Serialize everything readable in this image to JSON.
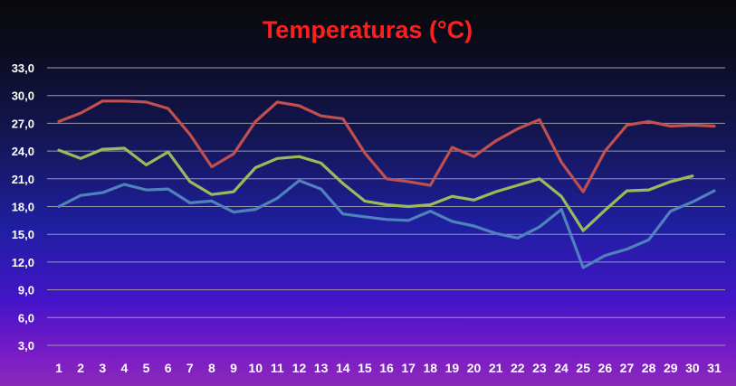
{
  "chart_data": {
    "type": "line",
    "title": "Temperaturas (°C)",
    "xlabel": "",
    "ylabel": "",
    "ylim": [
      3,
      33
    ],
    "yticks": [
      "3,0",
      "6,0",
      "9,0",
      "12,0",
      "15,0",
      "18,0",
      "21,0",
      "24,0",
      "27,0",
      "30,0",
      "33,0"
    ],
    "ytick_values": [
      3,
      6,
      9,
      12,
      15,
      18,
      21,
      24,
      27,
      30,
      33
    ],
    "categories": [
      "1",
      "2",
      "3",
      "4",
      "5",
      "6",
      "7",
      "8",
      "9",
      "10",
      "11",
      "12",
      "13",
      "14",
      "15",
      "16",
      "17",
      "18",
      "19",
      "20",
      "21",
      "22",
      "23",
      "24",
      "25",
      "26",
      "27",
      "28",
      "29",
      "30",
      "31"
    ],
    "grid": true,
    "legend": "none",
    "series": [
      {
        "color": "#c0504d",
        "values": [
          27.2,
          28.1,
          29.4,
          29.4,
          29.3,
          28.6,
          25.8,
          22.3,
          23.7,
          27.2,
          29.3,
          28.9,
          27.8,
          27.5,
          23.8,
          21.0,
          20.7,
          20.3,
          24.4,
          23.4,
          25.1,
          26.4,
          27.4,
          22.8,
          19.6,
          24.0,
          26.8,
          27.2,
          26.7,
          26.8,
          26.7
        ]
      },
      {
        "color": "#9bbb59",
        "values": [
          24.1,
          23.2,
          24.2,
          24.3,
          22.5,
          23.9,
          20.7,
          19.3,
          19.6,
          22.2,
          23.2,
          23.4,
          22.7,
          20.5,
          18.6,
          18.2,
          18.0,
          18.2,
          19.1,
          18.7,
          19.6,
          20.3,
          21.0,
          19.1,
          15.4,
          17.6,
          19.7,
          19.8,
          20.7,
          21.3,
          null
        ]
      },
      {
        "color": "#4f81bd",
        "values": [
          18.0,
          19.2,
          19.5,
          20.4,
          19.8,
          19.9,
          18.4,
          18.6,
          17.4,
          17.7,
          18.9,
          20.8,
          19.9,
          17.2,
          16.9,
          16.6,
          16.5,
          17.5,
          16.4,
          15.9,
          15.1,
          14.6,
          15.8,
          17.7,
          11.4,
          12.7,
          13.4,
          14.4,
          17.5,
          18.5,
          19.7
        ]
      }
    ]
  }
}
